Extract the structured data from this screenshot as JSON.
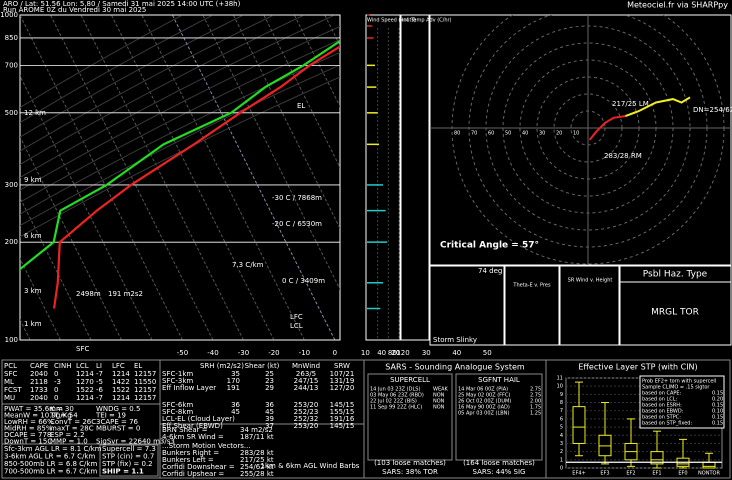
{
  "header": {
    "title": "ARO / Lat: 51.56 Lon: 5.80 / Samedi 31 mai 2025 14:00 UTC (+38h)",
    "run": "Run AROME 0Z du Vendredi 30 mai 2025",
    "credit": "Meteociel.fr via SHARPpy"
  },
  "skewt": {
    "type": "skewt",
    "ylim": [
      1000,
      100
    ],
    "xlim": [
      -50,
      55
    ],
    "pressure_ticks": [
      100,
      200,
      300,
      500,
      700,
      850,
      1000
    ],
    "temp_ticks": [
      -50,
      -40,
      -30,
      -20,
      -10,
      0,
      10,
      20,
      30,
      40,
      50
    ],
    "height_labels": [
      "12 km",
      "9 km",
      "6 km",
      "3 km",
      "1 km"
    ],
    "profile": {
      "pressure": [
        1000,
        925,
        850,
        700,
        600,
        500,
        400,
        300,
        250,
        200,
        150,
        125
      ],
      "temperature": [
        21,
        17,
        10,
        0,
        -6,
        -15,
        -25,
        -39,
        -46,
        -53,
        -47,
        -44
      ],
      "dewpoint": [
        18,
        12,
        7,
        -2,
        -11,
        -18,
        -35,
        -47,
        -58,
        -55,
        -65,
        -72
      ]
    },
    "annotations": [
      "EL",
      "LFC",
      "LCL",
      "-30 C / 7868m",
      "-20 C / 6530m",
      "0 C / 3409m",
      "7.3 C/km",
      "2498m",
      "191 m2s2",
      "SFC"
    ]
  },
  "wind": {
    "title": "Wind Speed (knots)",
    "xlim": [
      0,
      120
    ],
    "xticks": [
      40,
      80,
      120
    ],
    "speed": [
      10,
      20,
      25,
      30,
      35,
      40,
      45,
      60,
      70,
      75,
      60,
      50
    ],
    "adv_title": "Inf. Temp Adv (C/hr)"
  },
  "hodograph": {
    "rings": [
      10,
      20,
      30,
      40,
      50,
      60,
      70,
      80
    ],
    "u": [
      1,
      5,
      10,
      15,
      22,
      30,
      40,
      50,
      55,
      60
    ],
    "v": [
      -7,
      -2,
      3,
      6,
      7,
      10,
      15,
      17,
      15,
      18
    ],
    "labels": [
      "217/25 LM",
      "283/28 RM",
      "DN=254/62"
    ],
    "critical_angle": "Critical Angle = 57°"
  },
  "panels": {
    "slinky_deg": "74 deg",
    "slinky": "Storm Slinky",
    "theta": "Theta-E v. Pres",
    "srwind": "SR Wind v. Height",
    "haz_title": "Psbl Haz. Type",
    "haz": "MRGL TOR"
  },
  "thermo": {
    "header": [
      "PCL",
      "CAPE",
      "CINH",
      "LCL",
      "LI",
      "LFC",
      "EL"
    ],
    "rows": [
      [
        "SFC",
        "2040",
        "0",
        "1214",
        "-7",
        "1214",
        "12157"
      ],
      [
        "ML",
        "2118",
        "-3",
        "1270",
        "-5",
        "1422",
        "11550"
      ],
      [
        "FCST",
        "1733",
        "0",
        "1522",
        "-6",
        "1522",
        "12157"
      ],
      [
        "MU",
        "2040",
        "0",
        "1214",
        "-7",
        "1214",
        "12157"
      ]
    ],
    "indices": [
      [
        "PWAT = 35.6mm",
        "K = 30",
        "WNDG = 0.5"
      ],
      [
        "MeanW = 10.9g/Kg",
        "TT = 54",
        "TEI = 19"
      ],
      [
        "LowRH = 66%",
        "ConvT = 26C",
        "3CAPE = 76"
      ],
      [
        "MidRH = 85%",
        "maxT = 28C",
        "MBURST = 0"
      ],
      [
        "DCAPE = 778",
        "ESP = 2.2",
        ""
      ],
      [
        "DownT = 15C",
        "MMP = 1.0",
        "SigSvr = 22640 m3/s3"
      ]
    ],
    "lapse": [
      "Sfc-3km AGL LR = 8.1 C/km",
      "3-6km AGL LR = 6.7 C/km",
      "850-500mb LR = 6.8 C/km",
      "700-500mb LR = 6.7 C/km"
    ],
    "params": [
      "Supercell = 7.3",
      "STP (cin) = 0.7",
      "STP (fix) = 0.2",
      "SHIP = 1.1"
    ]
  },
  "kinematic": {
    "header": [
      "SRH (m2/s2)",
      "Shear (kt)",
      "MnWind",
      "SRW"
    ],
    "rows": [
      [
        "SFC-1km",
        "35",
        "25",
        "263/5",
        "107/21"
      ],
      [
        "SFC-3km",
        "170",
        "23",
        "247/15",
        "131/19"
      ],
      [
        "Eff Inflow Layer",
        "191",
        "29",
        "244/13",
        "127/20"
      ],
      [
        "SFC-6km",
        "36",
        "36",
        "253/20",
        "145/15"
      ],
      [
        "SFC-8km",
        "45",
        "45",
        "252/23",
        "155/15"
      ],
      [
        "LCL-EL (Cloud Layer)",
        "",
        "39",
        "252/32",
        "191/16"
      ],
      [
        "Eff Shear (EBWD)",
        "",
        "37",
        "253/20",
        "145/15"
      ]
    ],
    "extra": [
      [
        "BRN Shear =",
        "34 m2/s2"
      ],
      [
        "4-6km SR Wind =",
        "187/11 kt"
      ]
    ],
    "storm_header": "...Storm Motion Vectors...",
    "storm": [
      [
        "Bunkers Right =",
        "283/28 kt"
      ],
      [
        "Bunkers Left =",
        "217/25 kt"
      ],
      [
        "Corfidi Downshear =",
        "254/62 kt"
      ],
      [
        "Corfidi Upshear =",
        "255/28 kt"
      ]
    ],
    "barbs": "1km & 6km AGL Wind Barbs"
  },
  "sars": {
    "title": "SARS - Sounding Analogue System",
    "supercell": "SUPERCELL",
    "hail": "SGFNT HAIL",
    "supercell_matches": [
      [
        "14 Jun 03 23Z (DLS)",
        "WEAK"
      ],
      [
        "03 May 06 23Z (RBD)",
        "NON"
      ],
      [
        "22 Jul 02 22Z (BIS)",
        "NON"
      ],
      [
        "11 Sep 99 22Z (HLC)",
        "NON"
      ]
    ],
    "hail_matches": [
      [
        "14 Mar 06 00Z (PIA)",
        "2.75"
      ],
      [
        "25 May 02 00Z (FFC)",
        "2.75"
      ],
      [
        "26 Oct 02 00Z (DUM)",
        "2.00"
      ],
      [
        "16 May 90 00Z (IAD)",
        "1.75"
      ],
      [
        "05 Apr 03 00Z (LBN)",
        "1.25"
      ]
    ],
    "supercell_loose": "(103 loose matches)",
    "supercell_pct": "SARS: 38% TOR",
    "hail_loose": "(164 loose matches)",
    "hail_pct": "SARS: 44% SIG"
  },
  "stp": {
    "type": "box",
    "title": "Effective Layer STP (with CIN)",
    "ylim": [
      0,
      11
    ],
    "yticks": [
      0,
      1,
      2,
      3,
      4,
      5,
      6,
      7,
      8,
      9,
      10,
      11
    ],
    "categories": [
      "EF4+",
      "EF3",
      "EF2",
      "EF1",
      "EF0",
      "NONTOR"
    ],
    "min": [
      1.5,
      0.5,
      0.2,
      0,
      0,
      0
    ],
    "q1": [
      3,
      1.5,
      1,
      0.5,
      0.2,
      0
    ],
    "median": [
      5,
      2.7,
      2,
      1,
      0.5,
      0.2
    ],
    "q3": [
      7.5,
      4,
      3,
      2,
      1.2,
      0.7
    ],
    "max": [
      10.5,
      8,
      6,
      4.5,
      3.5,
      1.8
    ],
    "current": 0.7,
    "legend": [
      [
        "Prob EF2+ torn with supercell",
        ""
      ],
      [
        "Sample CLIMO = .15 sigtor",
        ""
      ],
      [
        "based on CAPE:",
        "0.15"
      ],
      [
        "based on LCL:",
        "0.20"
      ],
      [
        "based on ESRH:",
        "0.15"
      ],
      [
        "based on EBWD:",
        "0.10"
      ],
      [
        "based on STPC:",
        "0.15"
      ],
      [
        "based on STP_fixed:",
        "0.15"
      ]
    ]
  }
}
